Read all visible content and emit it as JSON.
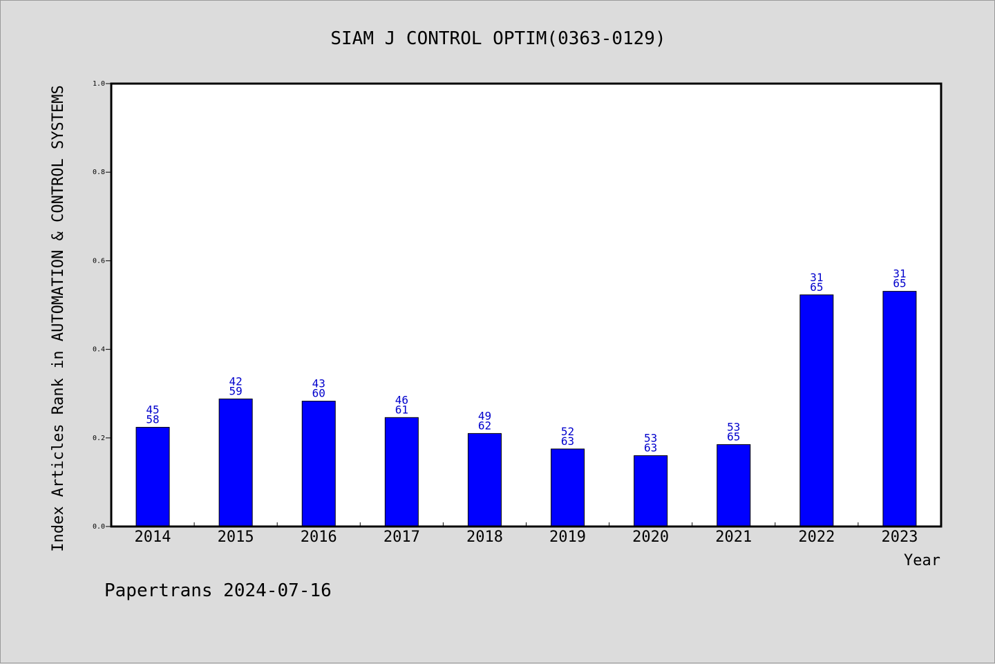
{
  "chart_data": {
    "type": "bar",
    "title": "SIAM J CONTROL OPTIM(0363-0129)",
    "xlabel": "Year",
    "ylabel": "Index Articles Rank in AUTOMATION & CONTROL SYSTEMS",
    "ylim": [
      0,
      1.0
    ],
    "yticks": [
      "0.0",
      "0.2",
      "0.4",
      "0.6",
      "0.8",
      "1.0"
    ],
    "grid": false,
    "bar_color": "#0000ff",
    "label_color": "#0000cc",
    "categories": [
      "2014",
      "2015",
      "2016",
      "2017",
      "2018",
      "2019",
      "2020",
      "2021",
      "2022",
      "2023"
    ],
    "values": [
      0.224,
      0.288,
      0.283,
      0.246,
      0.21,
      0.175,
      0.16,
      0.185,
      0.523,
      0.531
    ],
    "labels_top": [
      "45",
      "42",
      "43",
      "46",
      "49",
      "52",
      "53",
      "53",
      "31",
      "31"
    ],
    "labels_bottom": [
      "58",
      "59",
      "60",
      "61",
      "62",
      "63",
      "63",
      "65",
      "65",
      "65"
    ]
  },
  "footer": "Papertrans 2024-07-16"
}
